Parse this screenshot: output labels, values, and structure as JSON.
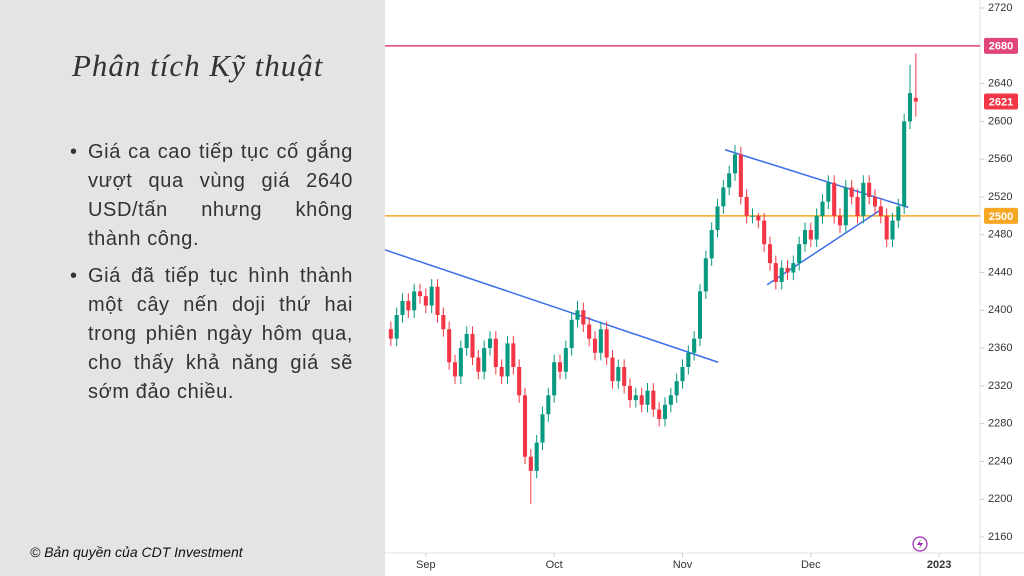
{
  "slide": {
    "title": "Phân tích Kỹ thuật",
    "bullets": [
      "Giá ca cao tiếp tục cố gắng vượt qua vùng giá 2640 USD/tấn nhưng không thành công.",
      "Giá đã tiếp tục hình thành một cây nến doji thứ hai trong phiên ngày hôm qua, cho thấy khả năng giá sẽ sớm đảo chiều."
    ],
    "copyright": "© Bản quyền của CDT Investment"
  },
  "chart_data": {
    "type": "candlestick",
    "up_color": "#089981",
    "down_color": "#f23645",
    "open": [
      2380,
      2370,
      2395,
      2410,
      2400,
      2420,
      2415,
      2405,
      2425,
      2395,
      2380,
      2345,
      2330,
      2360,
      2375,
      2350,
      2335,
      2360,
      2370,
      2340,
      2330,
      2365,
      2340,
      2310,
      2245,
      2230,
      2260,
      2290,
      2310,
      2345,
      2335,
      2360,
      2390,
      2400,
      2385,
      2370,
      2355,
      2380,
      2350,
      2325,
      2340,
      2320,
      2305,
      2310,
      2300,
      2315,
      2295,
      2285,
      2300,
      2310,
      2325,
      2340,
      2355,
      2370,
      2420,
      2455,
      2485,
      2510,
      2530,
      2545,
      2565,
      2520,
      2500,
      2500,
      2495,
      2470,
      2450,
      2430,
      2445,
      2440,
      2450,
      2470,
      2485,
      2475,
      2500,
      2515,
      2535,
      2500,
      2490,
      2530,
      2520,
      2500,
      2535,
      2520,
      2510,
      2500,
      2475,
      2495,
      2510,
      2600,
      2625
    ],
    "high": [
      2388,
      2403,
      2418,
      2418,
      2428,
      2428,
      2423,
      2433,
      2433,
      2403,
      2388,
      2353,
      2368,
      2383,
      2383,
      2358,
      2368,
      2378,
      2378,
      2348,
      2373,
      2373,
      2348,
      2318,
      2253,
      2268,
      2298,
      2318,
      2353,
      2353,
      2368,
      2398,
      2410,
      2408,
      2393,
      2378,
      2388,
      2388,
      2358,
      2348,
      2348,
      2328,
      2318,
      2318,
      2323,
      2323,
      2303,
      2308,
      2318,
      2333,
      2348,
      2363,
      2378,
      2428,
      2463,
      2493,
      2518,
      2538,
      2553,
      2575,
      2573,
      2528,
      2508,
      2503,
      2503,
      2478,
      2458,
      2453,
      2453,
      2458,
      2478,
      2493,
      2493,
      2508,
      2523,
      2543,
      2543,
      2508,
      2538,
      2538,
      2528,
      2543,
      2543,
      2528,
      2518,
      2508,
      2503,
      2518,
      2608,
      2660,
      2672
    ],
    "low": [
      2362,
      2362,
      2387,
      2392,
      2392,
      2407,
      2397,
      2397,
      2387,
      2372,
      2337,
      2322,
      2322,
      2352,
      2342,
      2327,
      2327,
      2352,
      2332,
      2322,
      2322,
      2332,
      2302,
      2237,
      2195,
      2222,
      2252,
      2282,
      2302,
      2327,
      2327,
      2352,
      2382,
      2377,
      2362,
      2347,
      2347,
      2342,
      2317,
      2317,
      2312,
      2297,
      2297,
      2292,
      2292,
      2287,
      2277,
      2277,
      2292,
      2302,
      2317,
      2332,
      2347,
      2362,
      2412,
      2447,
      2477,
      2502,
      2522,
      2537,
      2512,
      2492,
      2492,
      2487,
      2462,
      2442,
      2422,
      2422,
      2432,
      2432,
      2442,
      2462,
      2467,
      2467,
      2492,
      2507,
      2492,
      2482,
      2482,
      2512,
      2492,
      2492,
      2512,
      2502,
      2492,
      2467,
      2467,
      2487,
      2502,
      2592,
      2605
    ],
    "close": [
      2370,
      2395,
      2410,
      2400,
      2420,
      2415,
      2405,
      2425,
      2395,
      2380,
      2345,
      2330,
      2360,
      2375,
      2350,
      2335,
      2360,
      2370,
      2340,
      2330,
      2365,
      2340,
      2310,
      2245,
      2230,
      2260,
      2290,
      2310,
      2345,
      2335,
      2360,
      2390,
      2400,
      2385,
      2370,
      2355,
      2380,
      2350,
      2325,
      2340,
      2320,
      2305,
      2310,
      2300,
      2315,
      2295,
      2285,
      2300,
      2310,
      2325,
      2340,
      2355,
      2370,
      2420,
      2455,
      2485,
      2510,
      2530,
      2545,
      2565,
      2520,
      2500,
      2500,
      2495,
      2470,
      2450,
      2430,
      2445,
      2440,
      2450,
      2470,
      2485,
      2475,
      2500,
      2515,
      2535,
      2500,
      2490,
      2530,
      2520,
      2500,
      2535,
      2520,
      2510,
      2500,
      2475,
      2495,
      2510,
      2600,
      2630,
      2621
    ],
    "xlim": [
      -1,
      101
    ],
    "xticks": [
      {
        "value": 6,
        "label": "Sep"
      },
      {
        "value": 28,
        "label": "Oct"
      },
      {
        "value": 50,
        "label": "Nov"
      },
      {
        "value": 72,
        "label": "Dec"
      },
      {
        "value": 94,
        "label": "2023"
      }
    ],
    "ylim": [
      2150.5,
      2728.5
    ],
    "yticks": [
      2720,
      2640,
      2600,
      2560,
      2520,
      2480,
      2440,
      2400,
      2360,
      2320,
      2280,
      2240,
      2200,
      2160
    ],
    "hlines": [
      {
        "value": 2680,
        "color": "#e0457b"
      },
      {
        "value": 2500,
        "color": "#f5a623"
      }
    ],
    "last_price_color": "#f23645",
    "trendlines": [
      {
        "x": [
          -1,
          56.1
        ],
        "values": [
          2464,
          2345
        ],
        "color": "#3b6ee8"
      },
      {
        "x": [
          57.3,
          88.7
        ],
        "values": [
          2570,
          2509
        ],
        "color": "#3b6ee8"
      },
      {
        "x": [
          64.5,
          83.9
        ],
        "values": [
          2427,
          2506
        ],
        "color": "#3b6ee8"
      }
    ]
  }
}
